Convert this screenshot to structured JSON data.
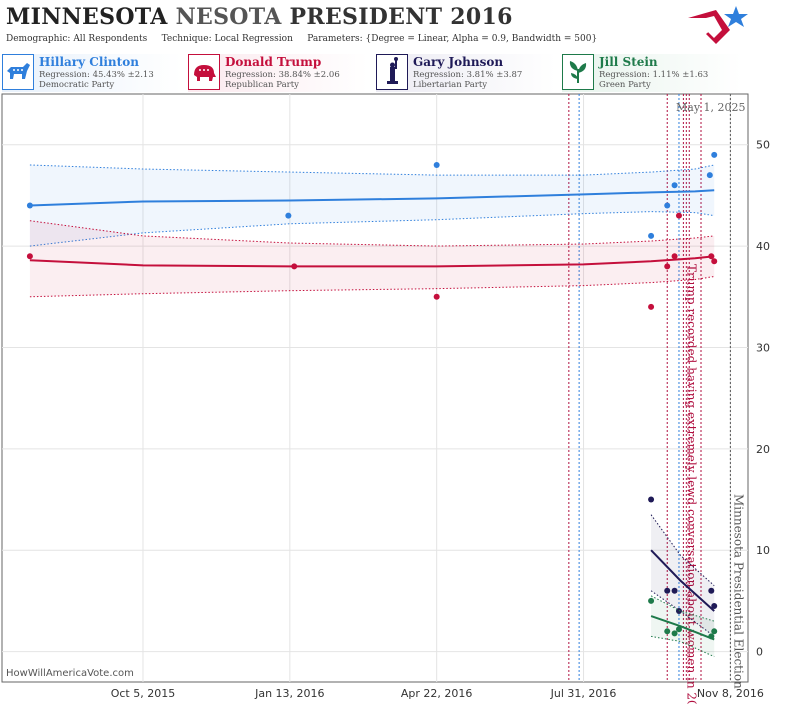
{
  "header": {
    "title_part1": "MINNESOTA",
    "title_part2": "NESOTA",
    "title_part3": "PRESIDENT 2016",
    "demographic_label": "Demographic:",
    "demographic_value": "All Respondents",
    "technique_label": "Technique:",
    "technique_value": "Local Regression",
    "parameters_label": "Parameters:",
    "parameters_value": "{Degree = Linear, Alpha = 0.9, Bandwidth = 500}"
  },
  "legend": [
    {
      "name": "Hillary Clinton",
      "regression": "Regression: 45.43% ±2.13",
      "party": "Democratic Party",
      "color": "#2f7fdc",
      "icon": "donkey-icon"
    },
    {
      "name": "Donald Trump",
      "regression": "Regression: 38.84% ±2.06",
      "party": "Republican Party",
      "color": "#c40f3c",
      "icon": "elephant-icon"
    },
    {
      "name": "Gary Johnson",
      "regression": "Regression: 3.81% ±3.87",
      "party": "Libertarian Party",
      "color": "#1f1a57",
      "icon": "statue-of-liberty-icon"
    },
    {
      "name": "Jill Stein",
      "regression": "Regression: 1.11% ±1.63",
      "party": "Green Party",
      "color": "#1e7a4a",
      "icon": "leaf-icon"
    }
  ],
  "date_stamp": "May 1, 2025",
  "watermark": "HowWillAmericaVote.com",
  "chart_data": {
    "type": "scatter",
    "x_axis": {
      "min": "2015-07-01",
      "max": "2016-11-20",
      "tick_labels": [
        "Oct 5, 2015",
        "Jan 13, 2016",
        "Apr 22, 2016",
        "Jul 31, 2016",
        "Nov 8, 2016"
      ],
      "tick_dates": [
        "2015-10-05",
        "2016-01-13",
        "2016-04-22",
        "2016-07-31",
        "2016-11-08"
      ]
    },
    "y_axis": {
      "min": -3,
      "max": 55,
      "ticks": [
        0,
        10,
        20,
        30,
        40,
        50
      ],
      "position": "right"
    },
    "grid": true,
    "annotations": [
      {
        "date": "2016-10-07",
        "text": "Trump recorded having extremely lewd conversation about women in 2005",
        "color": "#b01040"
      },
      {
        "date": "2016-11-08",
        "text": "Minnesota Presidential Election",
        "color": "#555555"
      }
    ],
    "event_lines": [
      {
        "date": "2016-07-21",
        "color": "#b01040"
      },
      {
        "date": "2016-07-28",
        "color": "#2f7fdc"
      },
      {
        "date": "2016-09-26",
        "color": "#b01040"
      },
      {
        "date": "2016-10-04",
        "color": "#2f7fdc"
      },
      {
        "date": "2016-10-09",
        "color": "#b01040"
      },
      {
        "date": "2016-10-11",
        "color": "#b01040"
      },
      {
        "date": "2016-10-19",
        "color": "#b01040"
      }
    ],
    "series": [
      {
        "name": "Hillary Clinton",
        "color": "#2f7fdc",
        "points": [
          [
            "2015-07-20",
            44
          ],
          [
            "2016-01-12",
            43
          ],
          [
            "2016-04-22",
            48
          ],
          [
            "2016-09-15",
            41
          ],
          [
            "2016-09-26",
            44
          ],
          [
            "2016-10-01",
            46
          ],
          [
            "2016-10-25",
            47
          ],
          [
            "2016-10-28",
            49
          ]
        ],
        "trend": [
          [
            "2015-07-20",
            44.0
          ],
          [
            "2015-10-05",
            44.4
          ],
          [
            "2016-01-13",
            44.5
          ],
          [
            "2016-04-22",
            44.7
          ],
          [
            "2016-07-31",
            45.1
          ],
          [
            "2016-09-15",
            45.3
          ],
          [
            "2016-10-15",
            45.4
          ],
          [
            "2016-10-28",
            45.5
          ]
        ],
        "band_upper": [
          [
            "2015-07-20",
            48.0
          ],
          [
            "2015-10-05",
            47.6
          ],
          [
            "2016-01-13",
            47.3
          ],
          [
            "2016-04-22",
            47.0
          ],
          [
            "2016-07-31",
            47.0
          ],
          [
            "2016-09-15",
            47.3
          ],
          [
            "2016-10-15",
            47.6
          ],
          [
            "2016-10-28",
            48.0
          ]
        ],
        "band_lower": [
          [
            "2015-07-20",
            40.0
          ],
          [
            "2015-10-05",
            41.3
          ],
          [
            "2016-01-13",
            42.2
          ],
          [
            "2016-04-22",
            42.6
          ],
          [
            "2016-07-31",
            43.2
          ],
          [
            "2016-09-15",
            43.4
          ],
          [
            "2016-10-15",
            43.3
          ],
          [
            "2016-10-28",
            43.0
          ]
        ]
      },
      {
        "name": "Donald Trump",
        "color": "#c40f3c",
        "points": [
          [
            "2015-07-20",
            39
          ],
          [
            "2016-01-16",
            38
          ],
          [
            "2016-04-22",
            35
          ],
          [
            "2016-09-15",
            34
          ],
          [
            "2016-09-26",
            38
          ],
          [
            "2016-10-01",
            39
          ],
          [
            "2016-10-04",
            43
          ],
          [
            "2016-10-26",
            39
          ],
          [
            "2016-10-28",
            38.5
          ]
        ],
        "trend": [
          [
            "2015-07-20",
            38.6
          ],
          [
            "2015-10-05",
            38.1
          ],
          [
            "2016-01-13",
            38.0
          ],
          [
            "2016-04-22",
            38.0
          ],
          [
            "2016-07-31",
            38.2
          ],
          [
            "2016-09-15",
            38.5
          ],
          [
            "2016-10-15",
            38.8
          ],
          [
            "2016-10-28",
            39.0
          ]
        ],
        "band_upper": [
          [
            "2015-07-20",
            42.5
          ],
          [
            "2015-10-05",
            41.0
          ],
          [
            "2016-01-13",
            40.3
          ],
          [
            "2016-04-22",
            40.0
          ],
          [
            "2016-07-31",
            40.2
          ],
          [
            "2016-09-15",
            40.5
          ],
          [
            "2016-10-15",
            40.8
          ],
          [
            "2016-10-28",
            41.0
          ]
        ],
        "band_lower": [
          [
            "2015-07-20",
            35.0
          ],
          [
            "2015-10-05",
            35.3
          ],
          [
            "2016-01-13",
            35.6
          ],
          [
            "2016-04-22",
            35.8
          ],
          [
            "2016-07-31",
            36.1
          ],
          [
            "2016-09-15",
            36.4
          ],
          [
            "2016-10-15",
            36.7
          ],
          [
            "2016-10-28",
            37.0
          ]
        ]
      },
      {
        "name": "Gary Johnson",
        "color": "#1f1a57",
        "points": [
          [
            "2016-09-15",
            15
          ],
          [
            "2016-09-26",
            6
          ],
          [
            "2016-10-01",
            6
          ],
          [
            "2016-10-04",
            4
          ],
          [
            "2016-10-26",
            6
          ],
          [
            "2016-10-28",
            4.5
          ]
        ],
        "trend": [
          [
            "2016-09-15",
            10.0
          ],
          [
            "2016-10-05",
            7.0
          ],
          [
            "2016-10-28",
            4.0
          ]
        ],
        "band_upper": [
          [
            "2016-09-15",
            13.5
          ],
          [
            "2016-10-05",
            9.5
          ],
          [
            "2016-10-28",
            6.5
          ]
        ],
        "band_lower": [
          [
            "2016-09-15",
            6.0
          ],
          [
            "2016-10-05",
            4.0
          ],
          [
            "2016-10-28",
            1.5
          ]
        ]
      },
      {
        "name": "Jill Stein",
        "color": "#1e7a4a",
        "points": [
          [
            "2016-09-15",
            5
          ],
          [
            "2016-09-26",
            2
          ],
          [
            "2016-10-01",
            1.8
          ],
          [
            "2016-10-04",
            2.2
          ],
          [
            "2016-10-26",
            1.5
          ],
          [
            "2016-10-28",
            2
          ]
        ],
        "trend": [
          [
            "2016-09-15",
            3.5
          ],
          [
            "2016-10-05",
            2.5
          ],
          [
            "2016-10-28",
            1.2
          ]
        ],
        "band_upper": [
          [
            "2016-09-15",
            5.5
          ],
          [
            "2016-10-05",
            4.0
          ],
          [
            "2016-10-28",
            3.0
          ]
        ],
        "band_lower": [
          [
            "2016-09-15",
            1.5
          ],
          [
            "2016-10-05",
            1.0
          ],
          [
            "2016-10-28",
            -0.5
          ]
        ]
      }
    ]
  }
}
